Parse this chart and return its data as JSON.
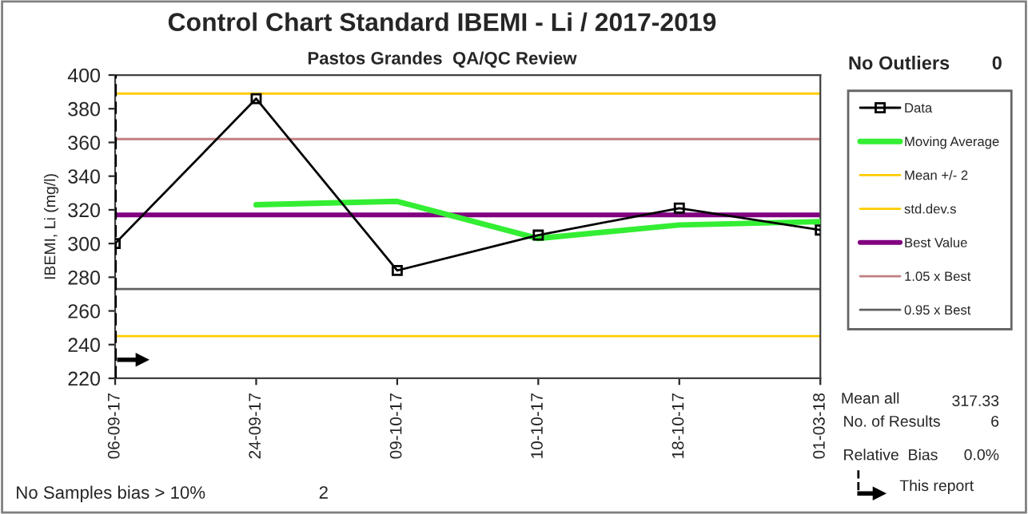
{
  "chart_data": {
    "type": "line",
    "title": "Control Chart Standard IBEMI - Li / 2017-2019",
    "subtitle": "Pastos Grandes  QA/QC Review",
    "ylabel": "IBEMI, Li (mg/l)",
    "categories": [
      "06-09-17",
      "24-09-17",
      "09-10-17",
      "10-10-17",
      "18-10-17",
      "01-03-18"
    ],
    "series": [
      {
        "name": "Data",
        "color": "#000000",
        "values": [
          300,
          386,
          284,
          305,
          321,
          308
        ],
        "marker": "square"
      },
      {
        "name": "Moving Average",
        "color": "#33ee33",
        "values": [
          null,
          323,
          325,
          303,
          311,
          313
        ],
        "marker": "none"
      }
    ],
    "ref_lines": [
      {
        "axis": "y",
        "value": 389,
        "label": "Mean +/- 2",
        "color": "#ffcc00"
      },
      {
        "axis": "y",
        "value": 245,
        "label": "std.dev.s",
        "color": "#ffcc00"
      },
      {
        "axis": "y",
        "value": 317,
        "label": "Best Value",
        "color": "#800080"
      },
      {
        "axis": "y",
        "value": 362,
        "label": "1.05 x Best",
        "color": "#c08080"
      },
      {
        "axis": "y",
        "value": 273,
        "label": "0.95 x Best",
        "color": "#606060"
      },
      {
        "axis": "x",
        "value": "06-09-17",
        "label": "This report",
        "color": "#000000",
        "line_style": "dashed"
      }
    ],
    "ylim": [
      220,
      400
    ],
    "yticks": [
      220,
      240,
      260,
      280,
      300,
      320,
      340,
      360,
      380,
      400
    ],
    "grid": false,
    "legend": "right",
    "annotations": [
      "No Outliers",
      "0",
      "No Samples bias > 10%",
      "2",
      "Mean all",
      "317.33",
      "No. of Results",
      "6",
      "Relative  Bias",
      "0.0%"
    ]
  }
}
